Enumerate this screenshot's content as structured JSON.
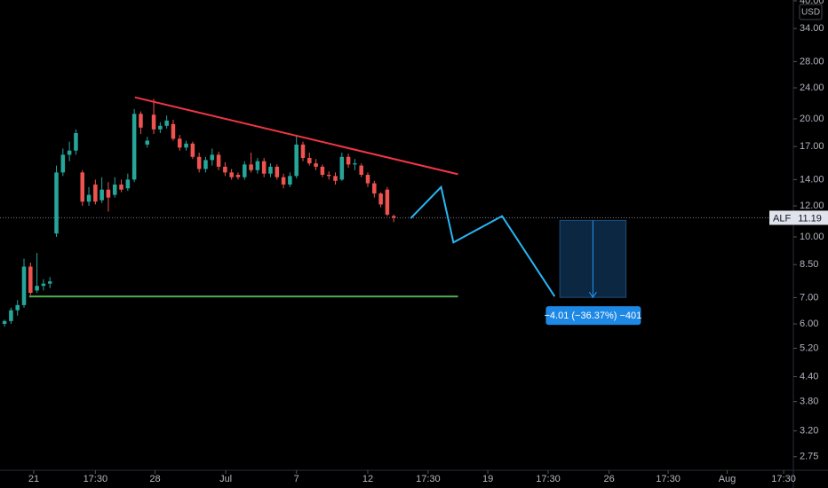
{
  "chart_data": {
    "type": "candlestick",
    "symbol": "ALF",
    "currency": "USD",
    "last_price": 11.19,
    "log_scale": true,
    "up_color": "#26a69a",
    "down_color": "#ef5350",
    "xlim": [
      -0.7,
      121.6
    ],
    "ylim": [
      2.54,
      40.2
    ],
    "yticks": [
      {
        "value": 40,
        "label": "40.00"
      },
      {
        "value": 34,
        "label": "34.00"
      },
      {
        "value": 28,
        "label": "28.00"
      },
      {
        "value": 24,
        "label": "24.00"
      },
      {
        "value": 20,
        "label": "20.00"
      },
      {
        "value": 17,
        "label": "17.00"
      },
      {
        "value": 14,
        "label": "14.00"
      },
      {
        "value": 12,
        "label": "12.00"
      },
      {
        "value": 10,
        "label": "10.00"
      },
      {
        "value": 8.5,
        "label": "8.50"
      },
      {
        "value": 7,
        "label": "7.00"
      },
      {
        "value": 6,
        "label": "6.00"
      },
      {
        "value": 5.2,
        "label": "5.20"
      },
      {
        "value": 4.4,
        "label": "4.40"
      },
      {
        "value": 3.8,
        "label": "3.80"
      },
      {
        "value": 3.2,
        "label": "3.20"
      },
      {
        "value": 2.75,
        "label": "2.75"
      }
    ],
    "xticks": [
      {
        "value": 4.5,
        "label": "21"
      },
      {
        "value": 14,
        "label": "17:30"
      },
      {
        "value": 23.2,
        "label": "28"
      },
      {
        "value": 34.1,
        "label": "Jul"
      },
      {
        "value": 45,
        "label": "7"
      },
      {
        "value": 56,
        "label": "12"
      },
      {
        "value": 65.3,
        "label": "17:30"
      },
      {
        "value": 74.5,
        "label": "19"
      },
      {
        "value": 83.8,
        "label": "17:30"
      },
      {
        "value": 93.2,
        "label": "26"
      },
      {
        "value": 102.3,
        "label": "17:30"
      },
      {
        "value": 111.4,
        "label": "Aug"
      },
      {
        "value": 120.1,
        "label": "17:30"
      }
    ],
    "open": [
      6.0,
      6.1,
      6.5,
      6.7,
      8.4,
      7.3,
      7.5,
      7.6,
      10.2,
      14.6,
      16.2,
      16.6,
      14.6,
      12.3,
      13.6,
      12.4,
      13.2,
      12.8,
      13.6,
      13.3,
      14.0,
      20.6,
      17.2,
      20.5,
      18.8,
      19.2,
      19.4,
      17.8,
      16.9,
      17.3,
      16.0,
      14.9,
      15.7,
      16.2,
      15.1,
      14.6,
      14.4,
      14.2,
      15.3,
      14.8,
      15.6,
      14.5,
      15.1,
      14.2,
      13.6,
      14.3,
      17.2,
      15.9,
      15.4,
      15.1,
      14.4,
      14.3,
      14.0,
      16.0,
      15.3,
      15.2,
      14.4,
      13.7,
      12.9,
      13.2,
      11.3
    ],
    "high": [
      6.15,
      6.6,
      6.9,
      8.8,
      8.6,
      9.1,
      7.8,
      7.9,
      15.2,
      16.8,
      17.5,
      18.8,
      14.8,
      13.4,
      14.0,
      14.2,
      13.8,
      14.2,
      14.0,
      14.5,
      21.2,
      20.9,
      18.0,
      22.5,
      19.6,
      20.4,
      19.9,
      18.2,
      17.6,
      17.5,
      16.4,
      16.0,
      16.8,
      16.5,
      15.5,
      14.9,
      14.6,
      15.6,
      16.4,
      15.9,
      15.9,
      15.4,
      15.3,
      14.5,
      14.6,
      18.2,
      17.5,
      16.4,
      15.8,
      15.3,
      14.7,
      14.6,
      16.4,
      16.3,
      15.8,
      15.4,
      14.6,
      13.9,
      13.0,
      13.4,
      11.4
    ],
    "low": [
      5.9,
      6.0,
      6.3,
      6.6,
      7.1,
      7.2,
      7.3,
      7.4,
      10.0,
      14.3,
      15.6,
      16.2,
      12.0,
      12.0,
      12.1,
      12.2,
      11.6,
      12.6,
      13.0,
      13.1,
      13.8,
      18.3,
      16.9,
      18.3,
      18.4,
      18.9,
      17.6,
      16.6,
      16.6,
      15.8,
      14.6,
      14.6,
      15.2,
      14.8,
      14.3,
      14.0,
      14.0,
      14.0,
      14.6,
      14.5,
      14.2,
      14.2,
      14.0,
      13.3,
      13.4,
      14.1,
      15.6,
      15.2,
      14.8,
      14.2,
      14.0,
      13.6,
      13.9,
      15.0,
      14.8,
      14.2,
      13.4,
      12.6,
      11.9,
      11.3,
      10.9
    ],
    "close": [
      6.1,
      6.5,
      6.7,
      8.4,
      7.2,
      7.5,
      7.6,
      7.7,
      14.6,
      16.2,
      16.6,
      18.4,
      12.3,
      12.8,
      12.3,
      13.2,
      12.6,
      13.6,
      13.2,
      14.0,
      20.6,
      19.0,
      17.6,
      18.8,
      19.2,
      19.8,
      17.8,
      16.9,
      17.3,
      16.0,
      14.9,
      15.7,
      16.2,
      15.1,
      14.6,
      14.2,
      14.2,
      15.3,
      14.8,
      15.6,
      14.5,
      15.1,
      14.2,
      13.6,
      14.3,
      17.2,
      15.9,
      15.4,
      15.1,
      14.4,
      14.3,
      13.9,
      16.0,
      15.3,
      15.4,
      14.4,
      13.7,
      12.9,
      12.1,
      11.4,
      11.19
    ],
    "drawings": [
      {
        "color": "#f23645",
        "x": [
          20.1,
          69.9
        ],
        "y": [
          22.7,
          14.45
        ]
      },
      {
        "color": "#4caf50",
        "x": [
          3.8,
          69.9
        ],
        "y": [
          7.05,
          7.05
        ]
      },
      {
        "color": "#29b6f6",
        "x": [
          62.6,
          67.3,
          69.2,
          76.7,
          84.8
        ],
        "y": [
          11.15,
          13.4,
          9.68,
          11.3,
          7.05
        ]
      }
    ],
    "position": {
      "x": [
        85.6,
        95.8
      ],
      "entry": 11.02,
      "target": 7.01,
      "label": "−4.01 (−36.37%) −401"
    }
  }
}
